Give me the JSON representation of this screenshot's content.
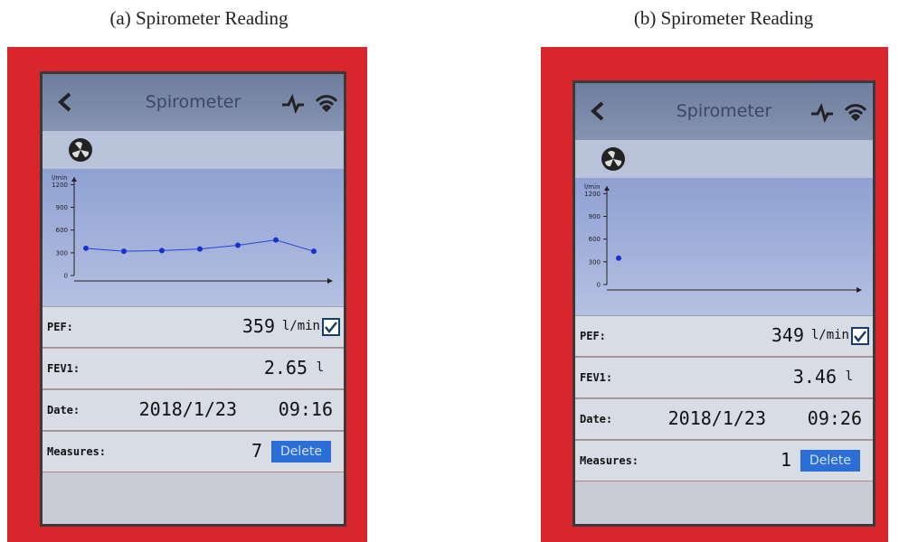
{
  "panels": [
    {
      "caption": "(a) Spirometer Reading",
      "title": "Spirometer",
      "chart": {
        "y_label": "l/min",
        "ylim": [
          0,
          1300
        ],
        "yticks": [
          0,
          300,
          600,
          900,
          1200
        ],
        "values": [
          360,
          320,
          330,
          350,
          400,
          470,
          320
        ]
      },
      "rows": [
        {
          "label": "PEF:",
          "value": "359",
          "unit": "l/min"
        },
        {
          "label": "FEV1:",
          "value": "2.65",
          "unit": "l"
        },
        {
          "label": "Date:",
          "value": "2018/1/23",
          "unit": "09:16"
        },
        {
          "label": "Measures:",
          "value": "7",
          "unit": "Delete"
        }
      ]
    },
    {
      "caption": "(b) Spirometer Reading",
      "title": "Spirometer",
      "chart": {
        "y_label": "l/min",
        "ylim": [
          0,
          1300
        ],
        "yticks": [
          0,
          300,
          600,
          900,
          1200
        ],
        "values": [
          349
        ]
      },
      "rows": [
        {
          "label": "PEF:",
          "value": "349",
          "unit": "l/min"
        },
        {
          "label": "FEV1:",
          "value": "3.46",
          "unit": "l"
        },
        {
          "label": "Date:",
          "value": "2018/1/23",
          "unit": "09:26"
        },
        {
          "label": "Measures:",
          "value": "1",
          "unit": "Delete"
        }
      ]
    }
  ]
}
